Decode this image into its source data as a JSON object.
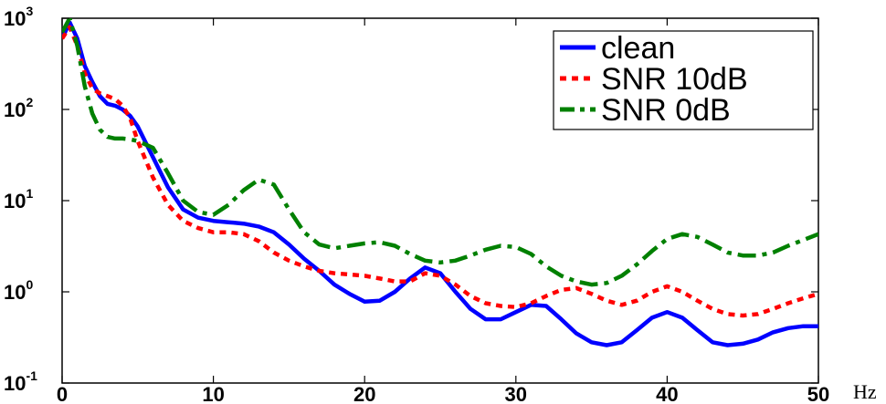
{
  "chart_data": {
    "type": "line",
    "title": "",
    "xlabel": "",
    "ylabel": "",
    "x_unit_label": "Hz",
    "xlim": [
      0,
      50
    ],
    "ylim": [
      0.1,
      1000
    ],
    "yscale": "log",
    "grid": false,
    "legend_position": "top-right",
    "x_ticks": [
      0,
      10,
      20,
      30,
      40,
      50
    ],
    "y_ticks": [
      {
        "value": 0.1,
        "base": "10",
        "exp": "-1"
      },
      {
        "value": 1,
        "base": "10",
        "exp": "0"
      },
      {
        "value": 10,
        "base": "10",
        "exp": "1"
      },
      {
        "value": 100,
        "base": "10",
        "exp": "2"
      },
      {
        "value": 1000,
        "base": "10",
        "exp": "3"
      }
    ],
    "series": [
      {
        "name": "clean",
        "color": "#0000ff",
        "dash": "solid",
        "x": [
          0,
          0.5,
          1,
          1.5,
          2,
          2.5,
          3,
          3.5,
          4,
          4.5,
          5,
          6,
          7,
          8,
          9,
          10,
          11,
          12,
          13,
          14,
          15,
          16,
          17,
          18,
          19,
          20,
          21,
          22,
          23,
          24,
          25,
          26,
          27,
          28,
          29,
          30,
          31,
          32,
          33,
          34,
          35,
          36,
          37,
          38,
          39,
          40,
          41,
          42,
          43,
          44,
          45,
          46,
          47,
          48,
          49,
          50
        ],
        "y": [
          600,
          900,
          600,
          300,
          200,
          140,
          115,
          110,
          100,
          85,
          65,
          30,
          14,
          8,
          6.5,
          6.0,
          5.8,
          5.6,
          5.2,
          4.5,
          3.3,
          2.3,
          1.7,
          1.2,
          0.95,
          0.78,
          0.8,
          1.0,
          1.4,
          1.85,
          1.6,
          1.0,
          0.65,
          0.5,
          0.5,
          0.6,
          0.72,
          0.7,
          0.5,
          0.35,
          0.28,
          0.26,
          0.28,
          0.38,
          0.52,
          0.6,
          0.52,
          0.38,
          0.28,
          0.26,
          0.27,
          0.3,
          0.36,
          0.4,
          0.42,
          0.42
        ]
      },
      {
        "name": "SNR 10dB",
        "color": "#ff0000",
        "dash": "dotted",
        "x": [
          0,
          0.5,
          1,
          1.5,
          2,
          2.5,
          3,
          3.5,
          4,
          4.5,
          5,
          6,
          7,
          8,
          9,
          10,
          11,
          12,
          13,
          14,
          15,
          16,
          17,
          18,
          19,
          20,
          21,
          22,
          23,
          24,
          25,
          26,
          27,
          28,
          29,
          30,
          31,
          32,
          33,
          34,
          35,
          36,
          37,
          38,
          39,
          40,
          41,
          42,
          43,
          44,
          45,
          46,
          47,
          48,
          49,
          50
        ],
        "y": [
          600,
          800,
          500,
          250,
          170,
          150,
          140,
          130,
          110,
          80,
          45,
          18,
          9,
          6,
          5,
          4.5,
          4.5,
          4.3,
          3.6,
          2.7,
          2.2,
          1.9,
          1.7,
          1.6,
          1.55,
          1.5,
          1.4,
          1.3,
          1.3,
          1.6,
          1.5,
          1.2,
          0.9,
          0.75,
          0.7,
          0.68,
          0.75,
          0.9,
          1.05,
          1.1,
          0.95,
          0.8,
          0.72,
          0.8,
          1.0,
          1.15,
          1.0,
          0.8,
          0.65,
          0.57,
          0.55,
          0.57,
          0.65,
          0.75,
          0.85,
          0.95
        ]
      },
      {
        "name": "SNR 0dB",
        "color": "#008000",
        "dash": "dash-dot",
        "x": [
          0,
          0.5,
          1,
          1.5,
          2,
          2.5,
          3,
          3.5,
          4,
          4.5,
          5,
          6,
          7,
          8,
          9,
          10,
          11,
          12,
          13,
          14,
          15,
          16,
          17,
          18,
          19,
          20,
          21,
          22,
          23,
          24,
          25,
          26,
          27,
          28,
          29,
          30,
          31,
          32,
          33,
          34,
          35,
          36,
          37,
          38,
          39,
          40,
          41,
          42,
          43,
          44,
          45,
          46,
          47,
          48,
          49,
          50
        ],
        "y": [
          700,
          1000,
          500,
          180,
          90,
          60,
          50,
          48,
          48,
          47,
          45,
          38,
          20,
          10,
          7.5,
          7.0,
          9,
          13,
          17,
          15,
          8,
          4.5,
          3.3,
          3.0,
          3.2,
          3.4,
          3.5,
          3.2,
          2.6,
          2.2,
          2.1,
          2.2,
          2.5,
          2.9,
          3.2,
          3.1,
          2.6,
          1.9,
          1.5,
          1.3,
          1.2,
          1.25,
          1.5,
          2.0,
          2.8,
          3.8,
          4.3,
          4.0,
          3.3,
          2.7,
          2.5,
          2.5,
          2.7,
          3.2,
          3.7,
          4.3
        ]
      }
    ]
  }
}
